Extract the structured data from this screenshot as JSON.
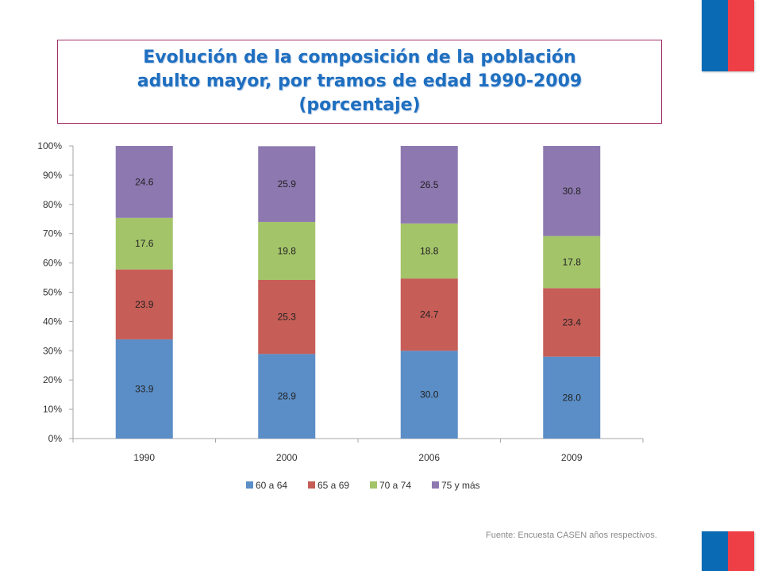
{
  "title": "Evolución de la composición de la población\nadulto mayor, por tramos de edad 1990-2009\n(porcentaje)",
  "source": "Fuente: Encuesta CASEN años respectivos.",
  "colors": {
    "flag_blue": "#0a6ab4",
    "flag_red": "#ee3f46",
    "title": "#1f6fc0",
    "title_border": "#a0306a"
  },
  "chart_data": {
    "type": "bar",
    "stacked": true,
    "categories": [
      "1990",
      "2000",
      "2006",
      "2009"
    ],
    "series": [
      {
        "name": "60 a 64",
        "values": [
          33.9,
          28.9,
          30.0,
          28.0
        ],
        "labels": [
          "33.9",
          "28.9",
          "30.0",
          "28.0"
        ],
        "color": "#5b8ec7"
      },
      {
        "name": "65 a 69",
        "values": [
          23.9,
          25.3,
          24.7,
          23.4
        ],
        "labels": [
          "23.9",
          "25.3",
          "24.7",
          "23.4"
        ],
        "color": "#c65d57"
      },
      {
        "name": "70 a 74",
        "values": [
          17.6,
          19.8,
          18.8,
          17.8
        ],
        "labels": [
          "17.6",
          "19.8",
          "18.8",
          "17.8"
        ],
        "color": "#a4c46a"
      },
      {
        "name": "75 y más",
        "values": [
          24.6,
          25.9,
          26.5,
          30.8
        ],
        "labels": [
          "24.6",
          "25.9",
          "26.5",
          "30.8"
        ],
        "color": "#8e78b0"
      }
    ],
    "y_ticks": [
      "0%",
      "10%",
      "20%",
      "30%",
      "40%",
      "50%",
      "60%",
      "70%",
      "80%",
      "90%",
      "100%"
    ],
    "ylim": [
      0,
      100
    ],
    "grid": false,
    "legend_position": "bottom"
  }
}
